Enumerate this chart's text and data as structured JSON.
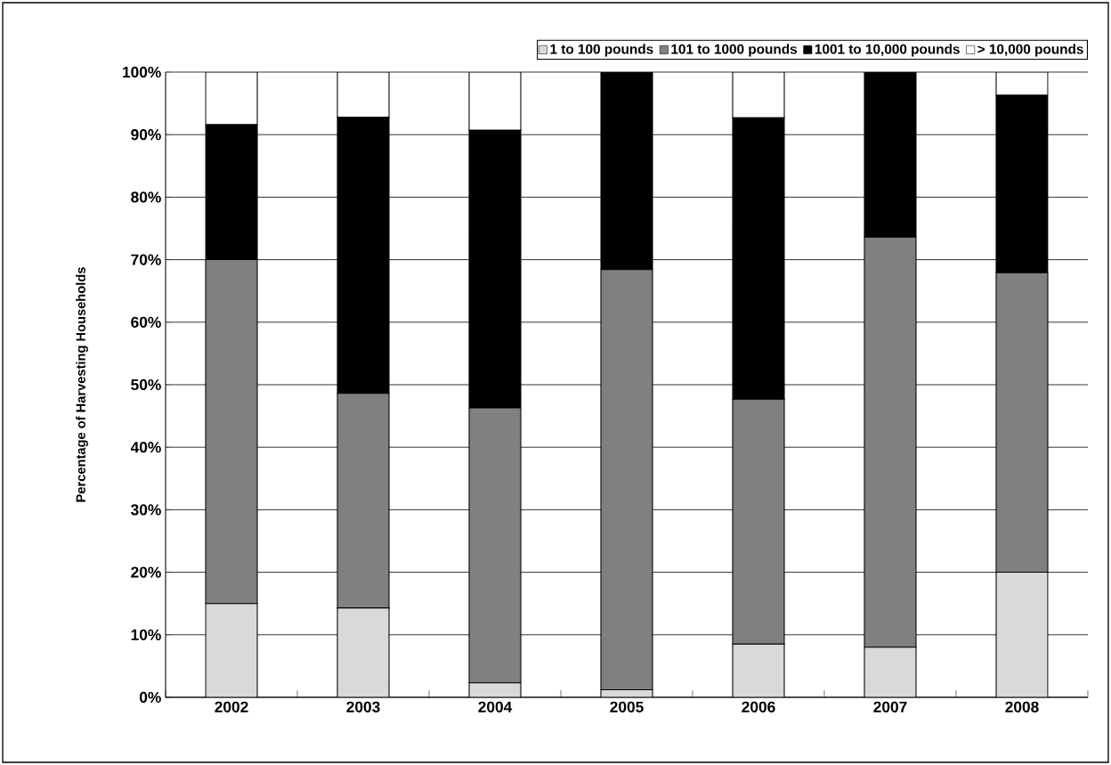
{
  "chart_data": {
    "type": "bar",
    "stacked": true,
    "ylabel": "Percentage of Harvesting Households",
    "categories": [
      "2002",
      "2003",
      "2004",
      "2005",
      "2006",
      "2007",
      "2008"
    ],
    "series": [
      {
        "name": "1 to 100 pounds",
        "color": "#d9d9d9",
        "values": [
          15,
          14.3,
          2.3,
          1.2,
          8.5,
          8,
          20
        ]
      },
      {
        "name": "101 to 1000 pounds",
        "color": "#808080",
        "values": [
          55,
          34.3,
          44,
          67.2,
          39.2,
          65.6,
          47.9
        ]
      },
      {
        "name": "1001 to 10,000 pounds",
        "color": "#000000",
        "values": [
          21.6,
          44.2,
          44.4,
          31.6,
          45,
          26.4,
          28.4
        ]
      },
      {
        "name": "> 10,000 pounds",
        "color": "#ffffff",
        "values": [
          8.4,
          7.2,
          9.3,
          0,
          7.3,
          0,
          3.7
        ]
      }
    ],
    "ylim": [
      0,
      100
    ],
    "yticks": [
      {
        "value": 0,
        "label": "0%"
      },
      {
        "value": 10,
        "label": "10%"
      },
      {
        "value": 20,
        "label": "20%"
      },
      {
        "value": 30,
        "label": "30%"
      },
      {
        "value": 40,
        "label": "40%"
      },
      {
        "value": 50,
        "label": "50%"
      },
      {
        "value": 60,
        "label": "60%"
      },
      {
        "value": 70,
        "label": "70%"
      },
      {
        "value": 80,
        "label": "80%"
      },
      {
        "value": 90,
        "label": "90%"
      },
      {
        "value": 100,
        "label": "100%"
      }
    ],
    "grid": "y",
    "legend": "top right"
  }
}
